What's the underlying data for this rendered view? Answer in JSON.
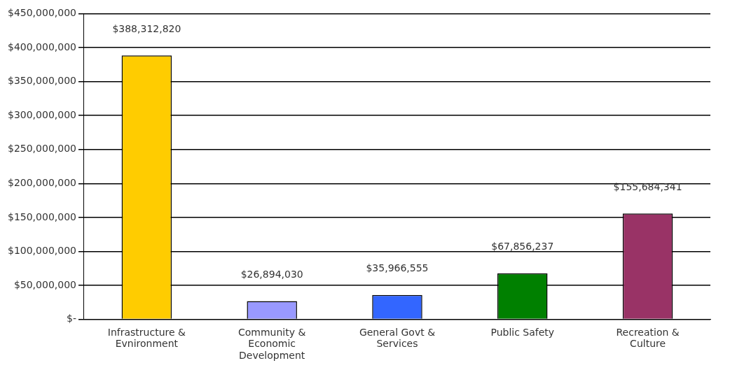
{
  "chart_data": {
    "type": "bar",
    "categories": [
      "Infrastructure & Evnironment",
      "Community & Economic Development",
      "General Govt & Services",
      "Public Safety",
      "Recreation & Culture"
    ],
    "values": [
      388312820,
      26894030,
      35966555,
      67856237,
      155684341
    ],
    "colors": [
      "#ffcc00",
      "#9999ff",
      "#3366ff",
      "#008000",
      "#993366"
    ],
    "ylim": [
      0,
      450000000
    ],
    "yticks": [
      {
        "value": 0,
        "label": "$-"
      },
      {
        "value": 50000000,
        "label": "$50,000,000"
      },
      {
        "value": 100000000,
        "label": "$100,000,000"
      },
      {
        "value": 150000000,
        "label": "$150,000,000"
      },
      {
        "value": 200000000,
        "label": "$200,000,000"
      },
      {
        "value": 250000000,
        "label": "$250,000,000"
      },
      {
        "value": 300000000,
        "label": "$300,000,000"
      },
      {
        "value": 350000000,
        "label": "$350,000,000"
      },
      {
        "value": 400000000,
        "label": "$400,000,000"
      },
      {
        "value": 450000000,
        "label": "$450,000,000"
      }
    ],
    "value_labels": [
      "$388,312,820",
      "$26,894,030",
      "$35,966,555",
      "$67,856,237",
      "$155,684,341"
    ],
    "grid": "y",
    "legend": false
  }
}
